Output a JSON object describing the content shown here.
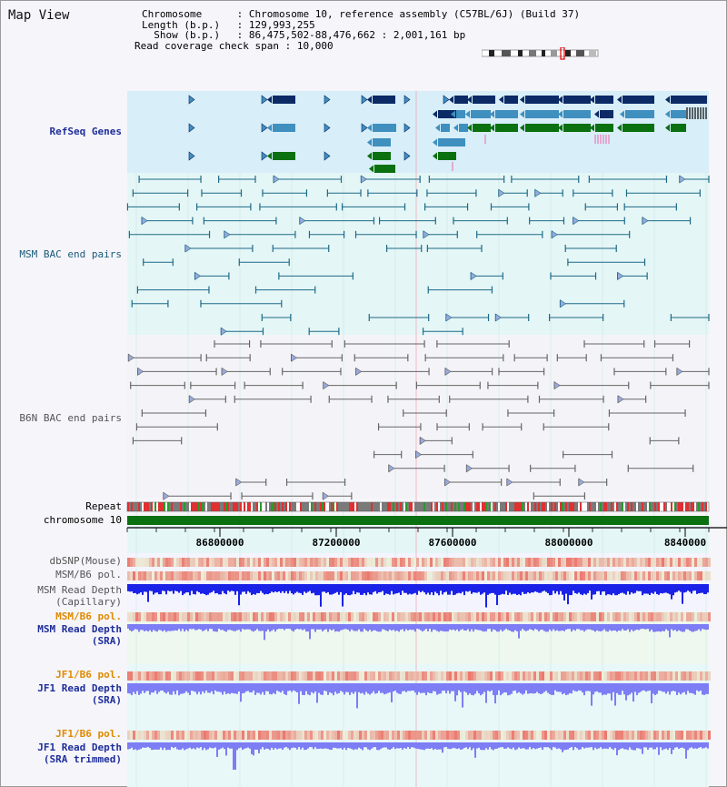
{
  "view_title": "Map View",
  "info": [
    {
      "key": "Chromosome",
      "sep": " :",
      "value": "Chromosome 10, reference assembly (C57BL/6J) (Build 37)"
    },
    {
      "key": "Length (b.p.)",
      "sep": " :",
      "value": "129,993,255"
    },
    {
      "key": "  Show (b.p.)",
      "sep": " :",
      "value": "86,475,502-88,476,662 : 2,001,161 bp"
    },
    {
      "key": "Read coverage check span",
      "sep": " :",
      "value": "10,000"
    }
  ],
  "ruler": {
    "ticks": [
      "86800000",
      "87200000",
      "87600000",
      "88000000",
      "8840000"
    ]
  },
  "tracks": {
    "refseq": "RefSeq Genes",
    "msm_bac": "MSM BAC end pairs",
    "b6n_bac": "B6N BAC end pairs",
    "repeat": "Repeat",
    "chromosome": "chromosome 10",
    "dbsnp": "dbSNP(Mouse)",
    "msm_pol": "MSM/B6 pol.",
    "msm_depth_cap": "MSM Read Depth",
    "msm_depth_cap_sub": "(Capillary)",
    "msm_pol2": "MSM/B6 pol.",
    "msm_depth_sra": "MSM Read Depth",
    "msm_depth_sra_sub": "(SRA)",
    "jf1_pol": "JF1/B6 pol.",
    "jf1_depth_sra": "JF1 Read Depth",
    "jf1_depth_sra_sub": "(SRA)",
    "jf1_pol2": "JF1/B6 pol.",
    "jf1_depth_trim": "JF1 Read Depth",
    "jf1_depth_trim_sub": "(SRA trimmed)"
  },
  "colors": {
    "refseq_dark": "#0b2a66",
    "refseq_mid": "#3f8fbf",
    "refseq_green": "#0a7010",
    "bac_msm": "#1e6a88",
    "bac_b6n": "#666666",
    "chromosome": "#0a7010",
    "depth_cap": "#1a22e8",
    "depth_sra": "#7d7df5"
  },
  "icons": [
    "ideogram-icon"
  ]
}
